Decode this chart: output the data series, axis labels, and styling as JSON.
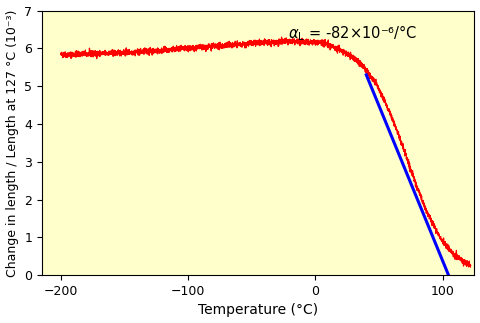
{
  "background_color": "#ffffcc",
  "line_color_red": "#ff0000",
  "line_color_blue": "#0000ff",
  "xlim": [
    -215,
    125
  ],
  "ylim": [
    0,
    7
  ],
  "xticks": [
    -200,
    -100,
    0,
    100
  ],
  "yticks": [
    0,
    1,
    2,
    3,
    4,
    5,
    6,
    7
  ],
  "xlabel": "Temperature (°C)",
  "ylabel": "Change in length / Length at 127 °C (10⁻³)",
  "alpha_L": -8.2e-05,
  "blue_line_T_start": 40,
  "blue_line_T_end": 112,
  "blue_line_y_start": 5.3,
  "figsize": [
    4.8,
    3.23
  ],
  "dpi": 100,
  "noise_std": 0.04
}
